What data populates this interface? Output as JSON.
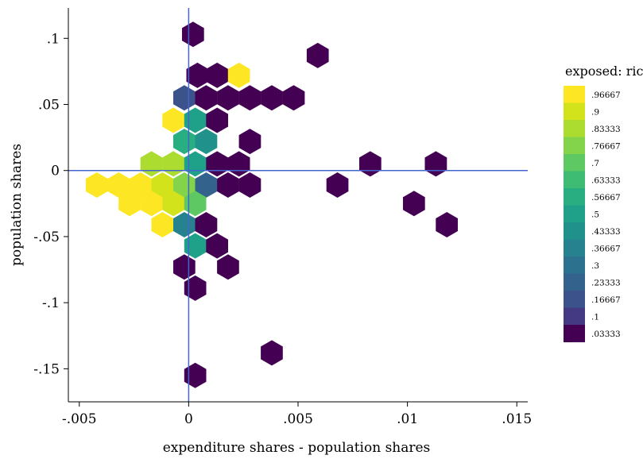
{
  "chart_data": {
    "type": "scatter",
    "subtype": "hexbin",
    "xlabel": "expenditure shares - population shares",
    "ylabel": "population shares",
    "xlim": [
      -0.0055,
      0.0155
    ],
    "ylim": [
      -0.175,
      0.123
    ],
    "x_ticks": [
      -0.005,
      0,
      0.005,
      0.01,
      0.015
    ],
    "x_tick_labels": [
      "-.005",
      "0",
      ".005",
      ".01",
      ".015"
    ],
    "y_ticks": [
      -0.15,
      -0.1,
      -0.05,
      0,
      0.05,
      0.1
    ],
    "y_tick_labels": [
      "-.15",
      "-.1",
      "-.05",
      "0",
      ".05",
      ".1"
    ],
    "reference_lines": {
      "x": 0,
      "y": 0,
      "color": "#4466cc"
    },
    "grid": false,
    "legend": {
      "title": "exposed: rice",
      "position": "right",
      "labels": [
        ".96667",
        ".9",
        ".83333",
        ".76667",
        ".7",
        ".63333",
        ".56667",
        ".5",
        ".43333",
        ".36667",
        ".3",
        ".23333",
        ".16667",
        ".1",
        ".03333"
      ],
      "colors": [
        "#fde725",
        "#d2e21b",
        "#addc30",
        "#84d44b",
        "#5ec962",
        "#3fbc73",
        "#28ae80",
        "#1fa088",
        "#21918c",
        "#26828e",
        "#2c728e",
        "#33638d",
        "#3b528b",
        "#443983",
        "#440154"
      ]
    },
    "points": [
      {
        "x": 0.0002,
        "y": 0.103,
        "v": 0.03333
      },
      {
        "x": 0.0059,
        "y": 0.087,
        "v": 0.03333
      },
      {
        "x": 0.0004,
        "y": 0.072,
        "v": 0.03333
      },
      {
        "x": 0.0013,
        "y": 0.072,
        "v": 0.03333
      },
      {
        "x": 0.0023,
        "y": 0.072,
        "v": 0.96667
      },
      {
        "x": -0.0002,
        "y": 0.055,
        "v": 0.16667
      },
      {
        "x": 0.0008,
        "y": 0.055,
        "v": 0.03333
      },
      {
        "x": 0.0018,
        "y": 0.055,
        "v": 0.03333
      },
      {
        "x": 0.0028,
        "y": 0.055,
        "v": 0.03333
      },
      {
        "x": 0.0038,
        "y": 0.055,
        "v": 0.03333
      },
      {
        "x": 0.0048,
        "y": 0.055,
        "v": 0.03333
      },
      {
        "x": -0.0007,
        "y": 0.038,
        "v": 0.96667
      },
      {
        "x": 0.0003,
        "y": 0.038,
        "v": 0.5
      },
      {
        "x": 0.0013,
        "y": 0.038,
        "v": 0.03333
      },
      {
        "x": -0.0002,
        "y": 0.022,
        "v": 0.56667
      },
      {
        "x": 0.0008,
        "y": 0.022,
        "v": 0.43333
      },
      {
        "x": 0.0028,
        "y": 0.022,
        "v": 0.03333
      },
      {
        "x": -0.0017,
        "y": 0.005,
        "v": 0.83333
      },
      {
        "x": -0.0007,
        "y": 0.005,
        "v": 0.83333
      },
      {
        "x": 0.0003,
        "y": 0.005,
        "v": 0.5
      },
      {
        "x": 0.0013,
        "y": 0.005,
        "v": 0.03333
      },
      {
        "x": 0.0023,
        "y": 0.005,
        "v": 0.03333
      },
      {
        "x": 0.0083,
        "y": 0.005,
        "v": 0.03333
      },
      {
        "x": 0.0113,
        "y": 0.005,
        "v": 0.03333
      },
      {
        "x": -0.0042,
        "y": -0.011,
        "v": 0.96667
      },
      {
        "x": -0.0032,
        "y": -0.011,
        "v": 0.96667
      },
      {
        "x": -0.0022,
        "y": -0.011,
        "v": 0.96667
      },
      {
        "x": -0.0012,
        "y": -0.011,
        "v": 0.9
      },
      {
        "x": -0.0002,
        "y": -0.011,
        "v": 0.76667
      },
      {
        "x": 0.0008,
        "y": -0.011,
        "v": 0.23333
      },
      {
        "x": 0.0018,
        "y": -0.011,
        "v": 0.03333
      },
      {
        "x": 0.0028,
        "y": -0.011,
        "v": 0.03333
      },
      {
        "x": 0.0068,
        "y": -0.011,
        "v": 0.03333
      },
      {
        "x": -0.0027,
        "y": -0.025,
        "v": 0.96667
      },
      {
        "x": -0.0017,
        "y": -0.025,
        "v": 0.96667
      },
      {
        "x": -0.0007,
        "y": -0.025,
        "v": 0.9
      },
      {
        "x": 0.0003,
        "y": -0.025,
        "v": 0.7
      },
      {
        "x": 0.0103,
        "y": -0.025,
        "v": 0.03333
      },
      {
        "x": -0.0012,
        "y": -0.041,
        "v": 0.96667
      },
      {
        "x": -0.0002,
        "y": -0.041,
        "v": 0.36667
      },
      {
        "x": 0.0008,
        "y": -0.041,
        "v": 0.03333
      },
      {
        "x": 0.0118,
        "y": -0.041,
        "v": 0.03333
      },
      {
        "x": 0.0003,
        "y": -0.057,
        "v": 0.5
      },
      {
        "x": 0.0013,
        "y": -0.057,
        "v": 0.03333
      },
      {
        "x": -0.0002,
        "y": -0.073,
        "v": 0.03333
      },
      {
        "x": 0.0018,
        "y": -0.073,
        "v": 0.03333
      },
      {
        "x": 0.0003,
        "y": -0.089,
        "v": 0.03333
      },
      {
        "x": 0.0038,
        "y": -0.138,
        "v": 0.03333
      },
      {
        "x": 0.0003,
        "y": -0.155,
        "v": 0.03333
      }
    ]
  }
}
